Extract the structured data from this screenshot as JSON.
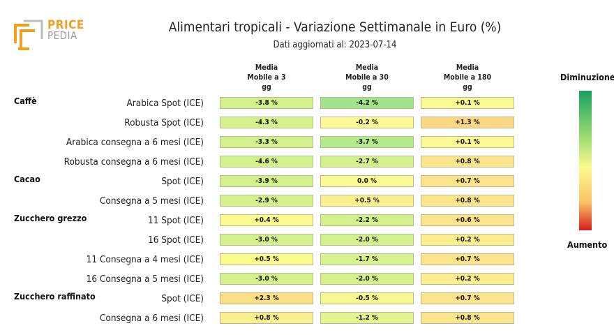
{
  "logo": {
    "line1": "PRICE",
    "line2": "PEDIA"
  },
  "chart_data": {
    "type": "table",
    "title": "Alimentari tropicali - Variazione Settimanale in Euro (%)",
    "subtitle": "Dati aggiornati al: 2023-07-14",
    "columns": [
      {
        "l1": "Media",
        "l2": "Mobile a 3",
        "l3": "gg"
      },
      {
        "l1": "Media",
        "l2": "Mobile a 30",
        "l3": "gg"
      },
      {
        "l1": "Media",
        "l2": "Mobile a 180",
        "l3": "gg"
      }
    ],
    "rows": [
      {
        "group": "Caffè",
        "label": "Arabica Spot (ICE)",
        "values": [
          "-3.8 %",
          "-4.2 %",
          "+0.1 %"
        ],
        "colors": [
          "#d2f08c",
          "#a2e48c",
          "#fbfa95"
        ]
      },
      {
        "group": "",
        "label": "Robusta Spot (ICE)",
        "values": [
          "-4.3 %",
          "-0.2 %",
          "+1.3 %"
        ],
        "colors": [
          "#d2f08c",
          "#fbfa95",
          "#fbd784"
        ]
      },
      {
        "group": "",
        "label": "Arabica consegna a 6 mesi (ICE)",
        "values": [
          "-3.3 %",
          "-3.7 %",
          "+0.1 %"
        ],
        "colors": [
          "#d2f08c",
          "#b4e98c",
          "#fbfa95"
        ]
      },
      {
        "group": "",
        "label": "Robusta consegna a 6 mesi (ICE)",
        "values": [
          "-4.6 %",
          "-2.7 %",
          "+0.8 %"
        ],
        "colors": [
          "#d2f08c",
          "#d2f08c",
          "#fbe48c"
        ]
      },
      {
        "group": "Cacao",
        "label": "Spot (ICE)",
        "values": [
          "-3.9 %",
          "0.0 %",
          "+0.7 %"
        ],
        "colors": [
          "#d2f08c",
          "#fbfa95",
          "#fbe48c"
        ]
      },
      {
        "group": "",
        "label": "Consegna a 5 mesi (ICE)",
        "values": [
          "-2.9 %",
          "+0.5 %",
          "+0.8 %"
        ],
        "colors": [
          "#d2f08c",
          "#fbf08e",
          "#fbe48c"
        ]
      },
      {
        "group": "Zucchero grezzo",
        "label": "11 Spot (ICE)",
        "values": [
          "+0.4 %",
          "-2.2 %",
          "+0.6 %"
        ],
        "colors": [
          "#fbfa8e",
          "#d2f08c",
          "#fbe48c"
        ]
      },
      {
        "group": "",
        "label": "16 Spot (ICE)",
        "values": [
          "-3.0 %",
          "-2.0 %",
          "+0.2 %"
        ],
        "colors": [
          "#d2f08c",
          "#d2f08c",
          "#fbee8e"
        ]
      },
      {
        "group": "",
        "label": "11 Consegna a 4 mesi (ICE)",
        "values": [
          "+0.5 %",
          "-1.7 %",
          "+0.7 %"
        ],
        "colors": [
          "#fbfa8e",
          "#d8f28e",
          "#fbe48c"
        ]
      },
      {
        "group": "",
        "label": "16 Consegna a 5 mesi (ICE)",
        "values": [
          "-3.0 %",
          "-2.0 %",
          "+0.2 %"
        ],
        "colors": [
          "#d2f08c",
          "#d2f08c",
          "#fbee8e"
        ]
      },
      {
        "group": "Zucchero raffinato",
        "label": "Spot (ICE)",
        "values": [
          "+2.3 %",
          "-0.5 %",
          "+0.7 %"
        ],
        "colors": [
          "#fbdf84",
          "#f4fa90",
          "#fbe48c"
        ]
      },
      {
        "group": "",
        "label": "Consegna a 6 mesi (ICE)",
        "values": [
          "+0.8 %",
          "-1.2 %",
          "+0.8 %"
        ],
        "colors": [
          "#fbf08e",
          "#e4f48e",
          "#fbe48c"
        ]
      }
    ],
    "legend": {
      "top": "Diminuzione",
      "bottom": "Aumento",
      "colors": [
        "#1aa060",
        "#8ed86e",
        "#fbfa8e",
        "#fbc264",
        "#d81c1c"
      ]
    }
  }
}
